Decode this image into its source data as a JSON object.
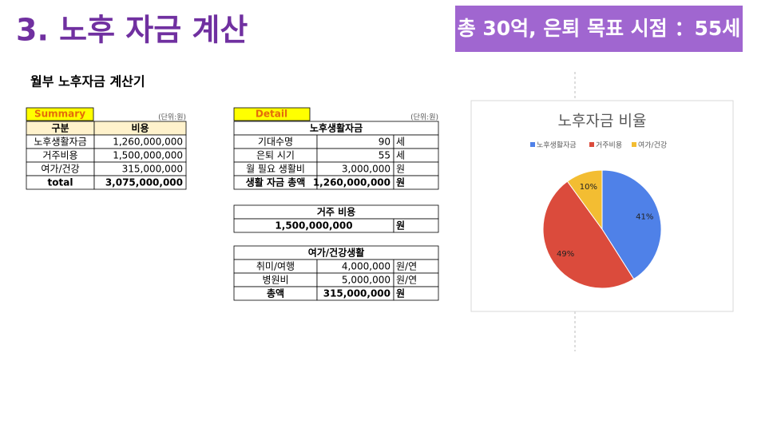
{
  "header": {
    "title": "3. 노후 자금 계산",
    "badge": "총 30억, 은퇴 목표 시점 ：55세"
  },
  "subtitle": "월부 노후자금 계산기",
  "summary": {
    "label": "Summary",
    "unit": "(단위:원)",
    "columns": [
      "구분",
      "비용"
    ],
    "rows": [
      [
        "노후생활자금",
        "1,260,000,000"
      ],
      [
        "거주비용",
        "1,500,000,000"
      ],
      [
        "여가/건강",
        "315,000,000"
      ],
      [
        "total",
        "3,075,000,000"
      ]
    ]
  },
  "detail": {
    "label": "Detail",
    "unit": "(단위:원)",
    "living": {
      "title": "노후생활자금",
      "rows": [
        [
          "기대수명",
          "90",
          "세"
        ],
        [
          "은퇴 시기",
          "55",
          "세"
        ],
        [
          "월 필요 생활비",
          "3,000,000",
          "원"
        ],
        [
          "생활 자금 총액",
          "1,260,000,000",
          "원"
        ]
      ]
    },
    "housing": {
      "title": "거주 비용",
      "rows": [
        [
          "1,500,000,000",
          "원"
        ]
      ]
    },
    "leisure": {
      "title": "여가/건강생활",
      "rows": [
        [
          "취미/여행",
          "4,000,000",
          "원/연"
        ],
        [
          "병원비",
          "5,000,000",
          "원/연"
        ],
        [
          "총액",
          "315,000,000",
          "원"
        ]
      ]
    }
  },
  "chart_data": {
    "type": "pie",
    "title": "노후자금 비율",
    "categories": [
      "노후생활자금",
      "거주비용",
      "여가/건강"
    ],
    "values": [
      41,
      49,
      10
    ],
    "value_labels": [
      "41%",
      "49%",
      "10%"
    ],
    "colors": [
      "#4f81e8",
      "#db4b3c",
      "#f3bd32"
    ],
    "legend": "top"
  }
}
